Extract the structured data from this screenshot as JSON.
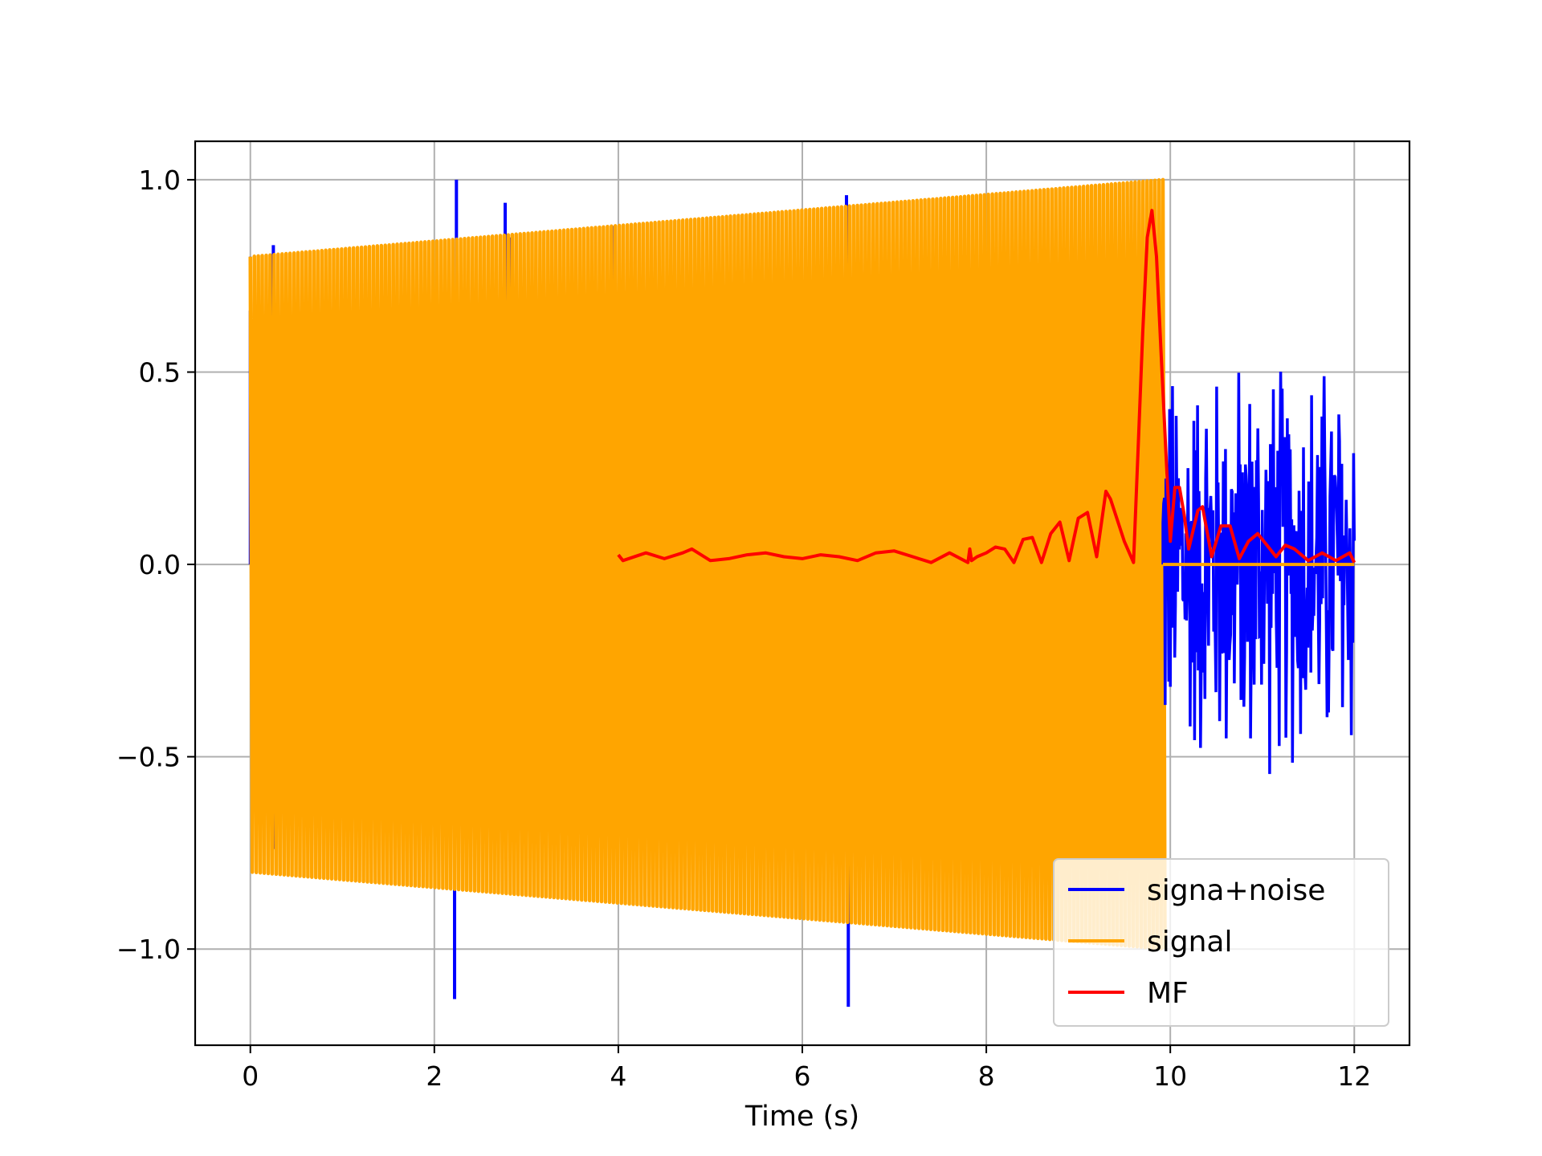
{
  "chart_data": {
    "type": "line",
    "title": "",
    "xlabel": "Time (s)",
    "ylabel": "",
    "xlim": [
      -0.6,
      12.6
    ],
    "ylim": [
      -1.25,
      1.1
    ],
    "xticks": [
      0,
      2,
      4,
      6,
      8,
      10,
      12
    ],
    "xtick_labels": [
      "0",
      "2",
      "4",
      "6",
      "8",
      "10",
      "12"
    ],
    "yticks": [
      -1.0,
      -0.5,
      0.0,
      0.5,
      1.0
    ],
    "ytick_labels": [
      "−1.0",
      "−0.5",
      "0.0",
      "0.5",
      "1.0"
    ],
    "grid": true,
    "legend_position": "lower-right",
    "series": [
      {
        "name": "signa+noise",
        "color": "#0000ff",
        "description_points": {
          "chirp_segment_t": [
            0,
            9.92
          ],
          "envelope_start": 0.8,
          "envelope_end": 1.0,
          "noise_spikes": [
            {
              "t": 0.0,
              "y": 0.66
            },
            {
              "t": 0.25,
              "y": 0.83
            },
            {
              "t": 0.25,
              "y": -0.74
            },
            {
              "t": 2.24,
              "y": 1.0
            },
            {
              "t": 2.22,
              "y": -1.13
            },
            {
              "t": 2.77,
              "y": 0.94
            },
            {
              "t": 2.82,
              "y": 0.85
            },
            {
              "t": 3.93,
              "y": 0.88
            },
            {
              "t": 6.48,
              "y": 0.96
            },
            {
              "t": 6.5,
              "y": -1.15
            }
          ],
          "noise_only_segment_t": [
            9.92,
            12.0
          ],
          "noise_amplitude": 0.6
        }
      },
      {
        "name": "signal",
        "color": "#ffa500",
        "description_points": {
          "chirp_segment_t": [
            0,
            9.92
          ],
          "envelope_start": 0.8,
          "envelope_end": 1.0,
          "zero_segment_t": [
            9.92,
            12.0
          ]
        }
      },
      {
        "name": "MF",
        "color": "#ff0000",
        "x": [
          4.0,
          4.05,
          4.3,
          4.5,
          4.7,
          4.8,
          5.0,
          5.2,
          5.4,
          5.6,
          5.8,
          6.0,
          6.2,
          6.4,
          6.6,
          6.8,
          7.0,
          7.2,
          7.4,
          7.6,
          7.8,
          7.82,
          7.84,
          7.9,
          8.0,
          8.1,
          8.2,
          8.3,
          8.4,
          8.5,
          8.6,
          8.7,
          8.8,
          8.9,
          9.0,
          9.1,
          9.2,
          9.3,
          9.35,
          9.5,
          9.6,
          9.65,
          9.7,
          9.75,
          9.8,
          9.85,
          9.9,
          9.95,
          10.0,
          10.05,
          10.1,
          10.15,
          10.2,
          10.3,
          10.35,
          10.45,
          10.55,
          10.65,
          10.75,
          10.85,
          10.95,
          11.05,
          11.15,
          11.25,
          11.35,
          11.5,
          11.65,
          11.8,
          11.95,
          12.0
        ],
        "y": [
          0.025,
          0.01,
          0.03,
          0.015,
          0.03,
          0.04,
          0.01,
          0.015,
          0.025,
          0.03,
          0.02,
          0.015,
          0.025,
          0.02,
          0.01,
          0.03,
          0.035,
          0.02,
          0.005,
          0.03,
          0.005,
          0.04,
          0.01,
          0.02,
          0.03,
          0.045,
          0.04,
          0.005,
          0.065,
          0.07,
          0.005,
          0.08,
          0.11,
          0.01,
          0.12,
          0.135,
          0.02,
          0.19,
          0.17,
          0.06,
          0.005,
          0.3,
          0.6,
          0.85,
          0.92,
          0.8,
          0.55,
          0.3,
          0.06,
          0.2,
          0.2,
          0.13,
          0.04,
          0.14,
          0.15,
          0.02,
          0.1,
          0.1,
          0.015,
          0.06,
          0.08,
          0.05,
          0.02,
          0.05,
          0.04,
          0.01,
          0.03,
          0.01,
          0.03,
          0.005
        ]
      }
    ]
  }
}
